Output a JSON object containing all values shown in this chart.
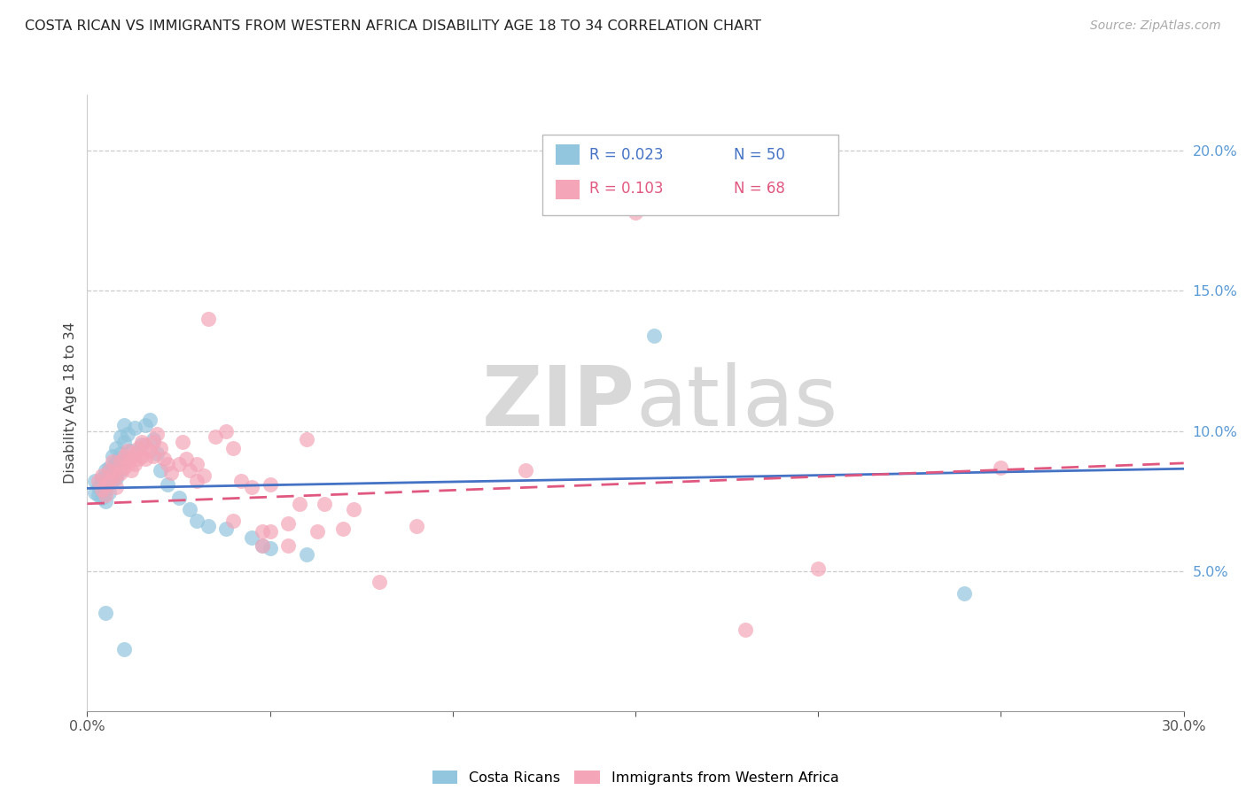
{
  "title": "COSTA RICAN VS IMMIGRANTS FROM WESTERN AFRICA DISABILITY AGE 18 TO 34 CORRELATION CHART",
  "source": "Source: ZipAtlas.com",
  "ylabel": "Disability Age 18 to 34",
  "xlim": [
    0.0,
    0.3
  ],
  "ylim": [
    0.0,
    0.22
  ],
  "xticks": [
    0.0,
    0.05,
    0.1,
    0.15,
    0.2,
    0.25,
    0.3
  ],
  "xtick_labels": [
    "0.0%",
    "",
    "",
    "",
    "",
    "",
    "30.0%"
  ],
  "yticks_right": [
    0.05,
    0.1,
    0.15,
    0.2
  ],
  "ytick_labels_right": [
    "5.0%",
    "10.0%",
    "15.0%",
    "20.0%"
  ],
  "legend_r1": "R = 0.023",
  "legend_n1": "N = 50",
  "legend_r2": "R = 0.103",
  "legend_n2": "N = 68",
  "color_blue": "#92c5de",
  "color_pink": "#f4a6b8",
  "color_line_blue": "#4472c4",
  "color_line_pink": "#e05880",
  "watermark_color": "#d8d8d8",
  "blue_scatter": [
    [
      0.002,
      0.082
    ],
    [
      0.002,
      0.078
    ],
    [
      0.003,
      0.08
    ],
    [
      0.003,
      0.077
    ],
    [
      0.004,
      0.083
    ],
    [
      0.004,
      0.079
    ],
    [
      0.004,
      0.076
    ],
    [
      0.005,
      0.086
    ],
    [
      0.005,
      0.082
    ],
    [
      0.005,
      0.079
    ],
    [
      0.005,
      0.075
    ],
    [
      0.006,
      0.087
    ],
    [
      0.006,
      0.083
    ],
    [
      0.006,
      0.078
    ],
    [
      0.007,
      0.091
    ],
    [
      0.007,
      0.086
    ],
    [
      0.007,
      0.082
    ],
    [
      0.008,
      0.094
    ],
    [
      0.008,
      0.089
    ],
    [
      0.008,
      0.083
    ],
    [
      0.009,
      0.098
    ],
    [
      0.009,
      0.092
    ],
    [
      0.009,
      0.086
    ],
    [
      0.01,
      0.102
    ],
    [
      0.01,
      0.096
    ],
    [
      0.01,
      0.089
    ],
    [
      0.011,
      0.099
    ],
    [
      0.012,
      0.093
    ],
    [
      0.013,
      0.101
    ],
    [
      0.015,
      0.095
    ],
    [
      0.016,
      0.102
    ],
    [
      0.017,
      0.104
    ],
    [
      0.018,
      0.097
    ],
    [
      0.019,
      0.092
    ],
    [
      0.02,
      0.086
    ],
    [
      0.022,
      0.081
    ],
    [
      0.025,
      0.076
    ],
    [
      0.028,
      0.072
    ],
    [
      0.03,
      0.068
    ],
    [
      0.033,
      0.066
    ],
    [
      0.038,
      0.065
    ],
    [
      0.045,
      0.062
    ],
    [
      0.048,
      0.059
    ],
    [
      0.05,
      0.058
    ],
    [
      0.06,
      0.056
    ],
    [
      0.155,
      0.134
    ],
    [
      0.2,
      0.195
    ],
    [
      0.24,
      0.042
    ],
    [
      0.005,
      0.035
    ],
    [
      0.01,
      0.022
    ]
  ],
  "pink_scatter": [
    [
      0.003,
      0.082
    ],
    [
      0.004,
      0.079
    ],
    [
      0.004,
      0.084
    ],
    [
      0.005,
      0.081
    ],
    [
      0.005,
      0.077
    ],
    [
      0.006,
      0.086
    ],
    [
      0.006,
      0.082
    ],
    [
      0.007,
      0.089
    ],
    [
      0.007,
      0.085
    ],
    [
      0.008,
      0.084
    ],
    [
      0.008,
      0.08
    ],
    [
      0.009,
      0.089
    ],
    [
      0.009,
      0.085
    ],
    [
      0.01,
      0.091
    ],
    [
      0.01,
      0.087
    ],
    [
      0.011,
      0.093
    ],
    [
      0.011,
      0.088
    ],
    [
      0.012,
      0.09
    ],
    [
      0.012,
      0.086
    ],
    [
      0.013,
      0.092
    ],
    [
      0.013,
      0.088
    ],
    [
      0.014,
      0.094
    ],
    [
      0.014,
      0.09
    ],
    [
      0.015,
      0.096
    ],
    [
      0.015,
      0.091
    ],
    [
      0.016,
      0.095
    ],
    [
      0.016,
      0.09
    ],
    [
      0.017,
      0.093
    ],
    [
      0.018,
      0.096
    ],
    [
      0.018,
      0.091
    ],
    [
      0.019,
      0.099
    ],
    [
      0.02,
      0.094
    ],
    [
      0.021,
      0.09
    ],
    [
      0.022,
      0.088
    ],
    [
      0.023,
      0.085
    ],
    [
      0.025,
      0.088
    ],
    [
      0.026,
      0.096
    ],
    [
      0.027,
      0.09
    ],
    [
      0.028,
      0.086
    ],
    [
      0.03,
      0.088
    ],
    [
      0.03,
      0.082
    ],
    [
      0.032,
      0.084
    ],
    [
      0.033,
      0.14
    ],
    [
      0.035,
      0.098
    ],
    [
      0.038,
      0.1
    ],
    [
      0.04,
      0.094
    ],
    [
      0.04,
      0.068
    ],
    [
      0.042,
      0.082
    ],
    [
      0.045,
      0.08
    ],
    [
      0.048,
      0.064
    ],
    [
      0.048,
      0.059
    ],
    [
      0.05,
      0.081
    ],
    [
      0.05,
      0.064
    ],
    [
      0.055,
      0.067
    ],
    [
      0.055,
      0.059
    ],
    [
      0.058,
      0.074
    ],
    [
      0.06,
      0.097
    ],
    [
      0.063,
      0.064
    ],
    [
      0.065,
      0.074
    ],
    [
      0.07,
      0.065
    ],
    [
      0.073,
      0.072
    ],
    [
      0.08,
      0.046
    ],
    [
      0.09,
      0.066
    ],
    [
      0.12,
      0.086
    ],
    [
      0.15,
      0.178
    ],
    [
      0.2,
      0.051
    ],
    [
      0.25,
      0.087
    ],
    [
      0.18,
      0.029
    ]
  ],
  "blue_line": [
    [
      0.0,
      0.0795
    ],
    [
      0.3,
      0.0865
    ]
  ],
  "pink_line": [
    [
      0.0,
      0.074
    ],
    [
      0.3,
      0.0885
    ]
  ]
}
